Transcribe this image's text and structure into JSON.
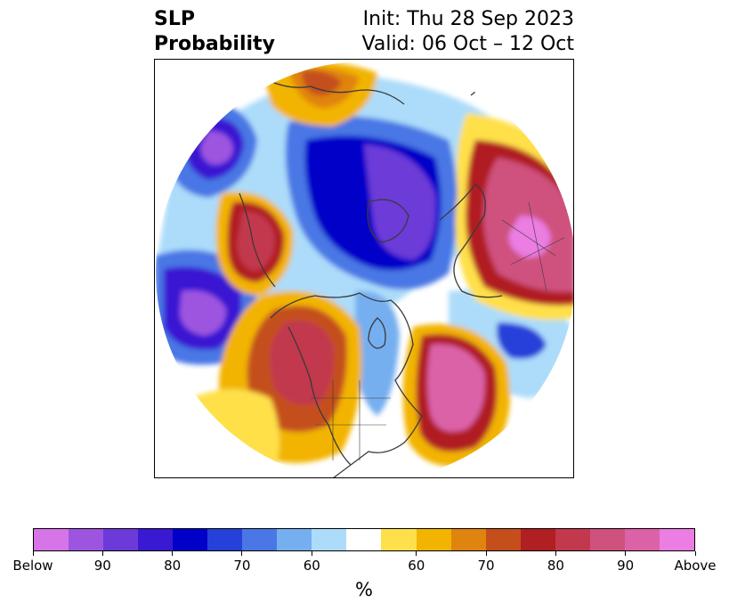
{
  "title": {
    "left_line1": "SLP",
    "left_line2": "Probability",
    "right_line1": "Init: Thu 28 Sep 2023",
    "right_line2": "Valid: 06 Oct – 12 Oct"
  },
  "map": {
    "projection": "north-polar-stereographic",
    "domain_shape": "circle",
    "coastline_color": "#3a3a3a"
  },
  "colorbar": {
    "unit_label": "%",
    "colors": [
      "#d774e8",
      "#9d55e0",
      "#6c3ad8",
      "#3a19d2",
      "#0000c8",
      "#2541d9",
      "#4a77e5",
      "#75aff0",
      "#acdcfa",
      "#ffffff",
      "#ffe04a",
      "#f2b400",
      "#e08410",
      "#c44f1a",
      "#b01f22",
      "#c2394d",
      "#cf517e",
      "#dc62a8",
      "#eb7de3"
    ],
    "ticks": [
      {
        "label": "Below",
        "index": 0
      },
      {
        "label": "90",
        "index": 2
      },
      {
        "label": "80",
        "index": 4
      },
      {
        "label": "70",
        "index": 6
      },
      {
        "label": "60",
        "index": 8
      },
      {
        "label": "60",
        "index": 11
      },
      {
        "label": "70",
        "index": 13
      },
      {
        "label": "80",
        "index": 15
      },
      {
        "label": "90",
        "index": 17
      },
      {
        "label": "Above",
        "index": 19
      }
    ]
  }
}
